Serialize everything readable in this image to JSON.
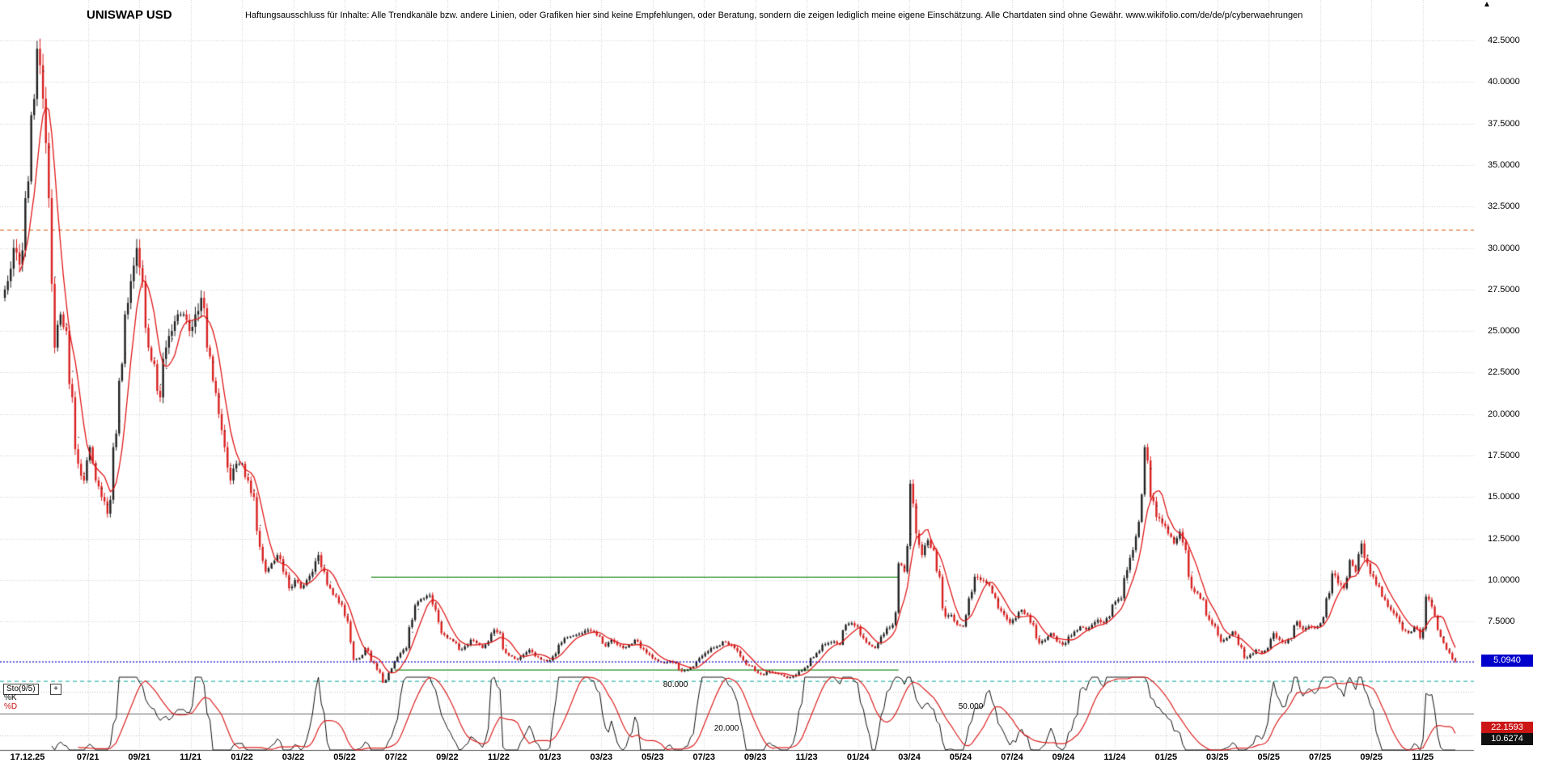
{
  "header": {
    "title": "UNISWAP USD",
    "disclaimer": "Haftungsausschluss für Inhalte: Alle Trendkanäle bzw. andere Linien, oder Grafiken hier sind keine Empfehlungen, oder Beratung, sondern die zeigen lediglich meine eigene Einschätzung. Alle Chartdaten sind ohne Gewähr.  www.wikifolio.com/de/de/p/cyberwaehrungen"
  },
  "icons": {
    "corner_marker": "▲",
    "add_button": "+"
  },
  "axis": {
    "price_badge": "5.0940",
    "y_ticks": [
      "42.5000",
      "40.0000",
      "37.5000",
      "35.0000",
      "32.5000",
      "30.0000",
      "27.5000",
      "25.0000",
      "22.5000",
      "20.0000",
      "17.5000",
      "15.0000",
      "12.5000",
      "10.0000",
      "7.5000"
    ],
    "x_ticks": [
      "17.12.25",
      "07/21",
      "09/21",
      "11/21",
      "01/22",
      "03/22",
      "05/22",
      "07/22",
      "09/22",
      "11/22",
      "01/23",
      "03/23",
      "05/23",
      "07/23",
      "09/23",
      "11/23",
      "01/24",
      "03/24",
      "05/24",
      "07/24",
      "09/24",
      "11/24",
      "01/25",
      "03/25",
      "05/25",
      "07/25",
      "09/25",
      "11/25"
    ]
  },
  "stochastic": {
    "label": "Sto(9/5)",
    "k_label": "%K",
    "d_label": "%D",
    "levels": [
      "80.000",
      "50.000",
      "20.000"
    ],
    "d_value": "22.1593",
    "k_value": "10.6274"
  },
  "chart_data": {
    "type": "candlestick",
    "title": "UNISWAP USD",
    "x_start": "2021-03-15",
    "x_end": "2025-12-15",
    "interval": "weekly",
    "ylim": [
      3.5,
      45
    ],
    "y_tick_step": 2.5,
    "axis_side": "right",
    "grid": true,
    "last_price": 5.094,
    "closes_weekly": [
      27,
      28,
      30,
      29,
      33,
      38,
      42,
      39,
      33,
      24,
      26,
      25,
      21,
      17,
      16,
      18,
      16,
      15,
      14,
      18,
      22,
      26,
      28,
      30,
      28,
      24,
      23,
      21,
      24,
      25,
      26,
      26,
      25,
      26,
      27,
      24,
      22,
      20,
      18,
      16,
      17,
      17,
      16,
      15,
      12,
      10.5,
      11,
      11.5,
      10.5,
      9.5,
      10,
      9.5,
      10,
      10.5,
      11.5,
      10.5,
      9.5,
      9,
      8.5,
      7.5,
      5.2,
      5.3,
      5.9,
      5.1,
      4.6,
      3.8,
      4.4,
      5.1,
      5.6,
      5.9,
      7.6,
      8.7,
      8.9,
      9.1,
      8.2,
      6.8,
      6.5,
      6.3,
      5.8,
      6,
      6.4,
      6.2,
      5.9,
      6.3,
      7,
      6.8,
      5.6,
      5.4,
      5.2,
      5.5,
      5.8,
      5.4,
      5.2,
      5.1,
      5.4,
      6.1,
      6.5,
      6.6,
      6.7,
      6.8,
      7,
      6.9,
      6.6,
      6,
      6.4,
      6.1,
      5.9,
      6.1,
      6.4,
      5.9,
      5.6,
      5.3,
      5.1,
      5,
      5.1,
      5,
      4.5,
      4.6,
      4.8,
      5.3,
      5.6,
      5.9,
      6,
      6.3,
      6.1,
      5.9,
      5.4,
      4.9,
      4.8,
      4.4,
      4.3,
      4.5,
      4.4,
      4.3,
      4.1,
      4.2,
      4.5,
      4.7,
      5.3,
      5.6,
      6.1,
      6.2,
      6.3,
      6.1,
      7.3,
      7.4,
      7.2,
      6.5,
      6.1,
      5.9,
      6.6,
      7.1,
      7.3,
      11,
      10.5,
      15.8,
      12.8,
      11.5,
      12.4,
      11.8,
      10.2,
      7.8,
      7.9,
      7.3,
      7.2,
      8.9,
      10.2,
      10,
      9.8,
      9.2,
      8.3,
      7.9,
      7.4,
      7.7,
      8.2,
      7.9,
      7.3,
      6.2,
      6.4,
      6.8,
      6.3,
      6.1,
      6.6,
      6.9,
      7.2,
      7,
      7.3,
      7.6,
      7.4,
      7.8,
      8.7,
      8.9,
      10.6,
      11.8,
      13.5,
      18,
      15,
      13.8,
      13.4,
      12.8,
      12.2,
      12.9,
      11.8,
      9.5,
      9.2,
      8.8,
      7.6,
      7.2,
      6.3,
      6.5,
      6.9,
      6.1,
      5.3,
      5.5,
      5.8,
      5.6,
      5.9,
      6.8,
      6.4,
      6.2,
      6.5,
      7.5,
      7,
      7.2,
      7.1,
      7.4,
      8.9,
      10.4,
      9.8,
      9.5,
      11.2,
      10.5,
      12.2,
      11,
      10.2,
      9.6,
      8.8,
      8.2,
      7.8,
      7,
      6.8,
      7.2,
      6.5,
      9,
      8.4,
      7,
      6.2,
      5.6,
      5.094
    ],
    "lines": [
      {
        "kind": "resistance",
        "price": 31.1,
        "style": "dashed",
        "color": "#e0743a",
        "extent": "full"
      },
      {
        "kind": "last-price",
        "price": 5.094,
        "style": "dotted",
        "color": "#1515cc",
        "extent": "full",
        "label": "5.0940"
      },
      {
        "kind": "support",
        "price": 3.92,
        "style": "dashed",
        "color": "#3ab8ae",
        "extent": "full"
      },
      {
        "kind": "trendline",
        "price": 10.2,
        "style": "solid",
        "color": "#1e8c1e",
        "from_week": 63,
        "to_week": 153
      },
      {
        "kind": "trendline",
        "price": 4.6,
        "style": "solid",
        "color": "#1e8c1e",
        "from_week": 67,
        "to_week": 153
      }
    ],
    "overlays": [
      {
        "name": "moving-average-red",
        "color": "#e01818"
      },
      {
        "name": "moving-average-black-dots",
        "color": "#111111"
      }
    ],
    "indicator": {
      "type": "stochastic",
      "label": "Sto(9/5)",
      "k_period": 9,
      "d_period": 5,
      "levels": [
        80,
        50,
        20
      ],
      "k_color": "#111111",
      "d_color": "#dd2020",
      "k_last": 10.6274,
      "d_last": 22.1593
    },
    "colors": {
      "up": "#202020",
      "down": "#d92020",
      "grid": "#cdcdcd",
      "background": "#ffffff",
      "price_badge_bg": "#0000cc",
      "d_badge_bg": "#cc1515",
      "k_badge_bg": "#111111"
    }
  }
}
